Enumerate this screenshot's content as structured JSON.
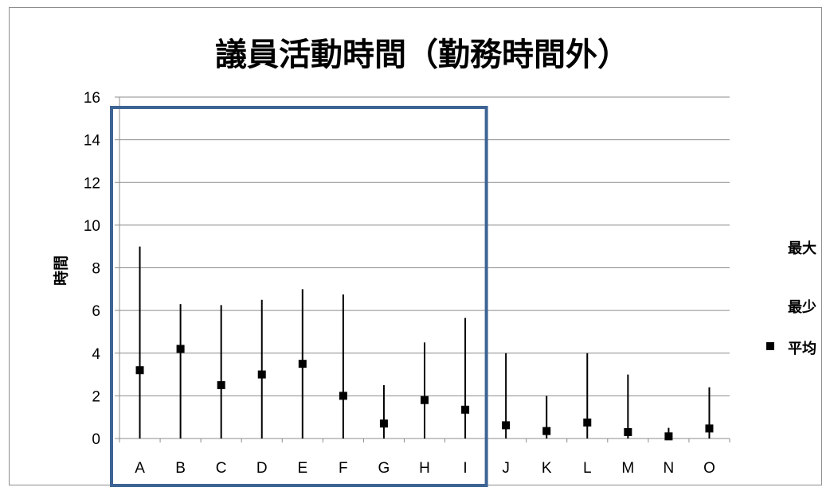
{
  "chart_data": {
    "type": "scatter",
    "title": "議員活動時間（勤務時間外）",
    "ylabel": "時間",
    "xlabel": "",
    "ylim": [
      0,
      16
    ],
    "yticks": [
      0,
      2,
      4,
      6,
      8,
      10,
      12,
      14,
      16
    ],
    "grid": true,
    "legend_position": "right",
    "categories": [
      "A",
      "B",
      "C",
      "D",
      "E",
      "F",
      "G",
      "H",
      "I",
      "J",
      "K",
      "L",
      "M",
      "N",
      "O"
    ],
    "series": [
      {
        "name": "最大",
        "values": [
          9.0,
          6.3,
          6.25,
          6.5,
          7.0,
          6.75,
          2.5,
          4.5,
          5.65,
          4.0,
          2.0,
          4.0,
          3.0,
          0.5,
          2.4
        ]
      },
      {
        "name": "最少",
        "values": [
          0,
          0,
          0,
          0,
          0,
          0,
          0,
          0,
          0,
          0,
          0,
          0,
          0,
          0,
          0
        ]
      },
      {
        "name": "平均",
        "values": [
          3.2,
          4.2,
          2.5,
          3.0,
          3.5,
          2.0,
          0.7,
          1.8,
          1.35,
          0.62,
          0.35,
          0.75,
          0.3,
          0.1,
          0.47
        ]
      }
    ],
    "highlight_range": [
      "A",
      "I"
    ],
    "colors": {
      "highlight_box": "#3d6494",
      "grid": "#8c8c8c",
      "marker": "#000000"
    }
  }
}
